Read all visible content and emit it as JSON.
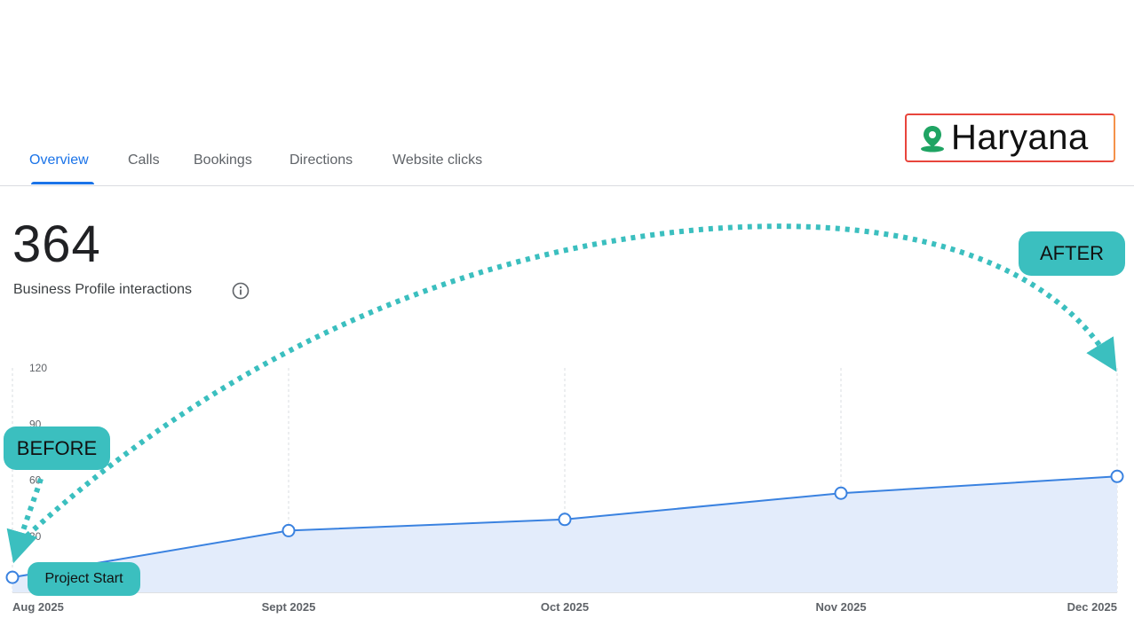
{
  "tabs": [
    {
      "label": "Overview",
      "active": true
    },
    {
      "label": "Calls",
      "active": false
    },
    {
      "label": "Bookings",
      "active": false
    },
    {
      "label": "Directions",
      "active": false
    },
    {
      "label": "Website clicks",
      "active": false
    }
  ],
  "location": {
    "name": "Haryana",
    "icon": "map-pin-icon",
    "pin_color": "#1fa463"
  },
  "metric": {
    "value": "364",
    "label": "Business Profile interactions",
    "info_icon": "info-icon"
  },
  "annotations": {
    "before": "BEFORE",
    "after": "AFTER",
    "start": "Project Start"
  },
  "colors": {
    "accent": "#1a73e8",
    "line": "#3a82e0",
    "area": "#e3ecfb",
    "annotation": "#3bbfbf"
  },
  "chart_data": {
    "type": "area",
    "categories": [
      "Aug 2025",
      "Sept 2025",
      "Oct 2025",
      "Nov 2025",
      "Dec 2025"
    ],
    "values": [
      8,
      33,
      39,
      53,
      62
    ],
    "y_ticks": [
      "120",
      "90",
      "60",
      "30"
    ],
    "ylim": [
      0,
      120
    ],
    "grid": "vertical-dashed",
    "title": "",
    "xlabel": "",
    "ylabel": ""
  }
}
